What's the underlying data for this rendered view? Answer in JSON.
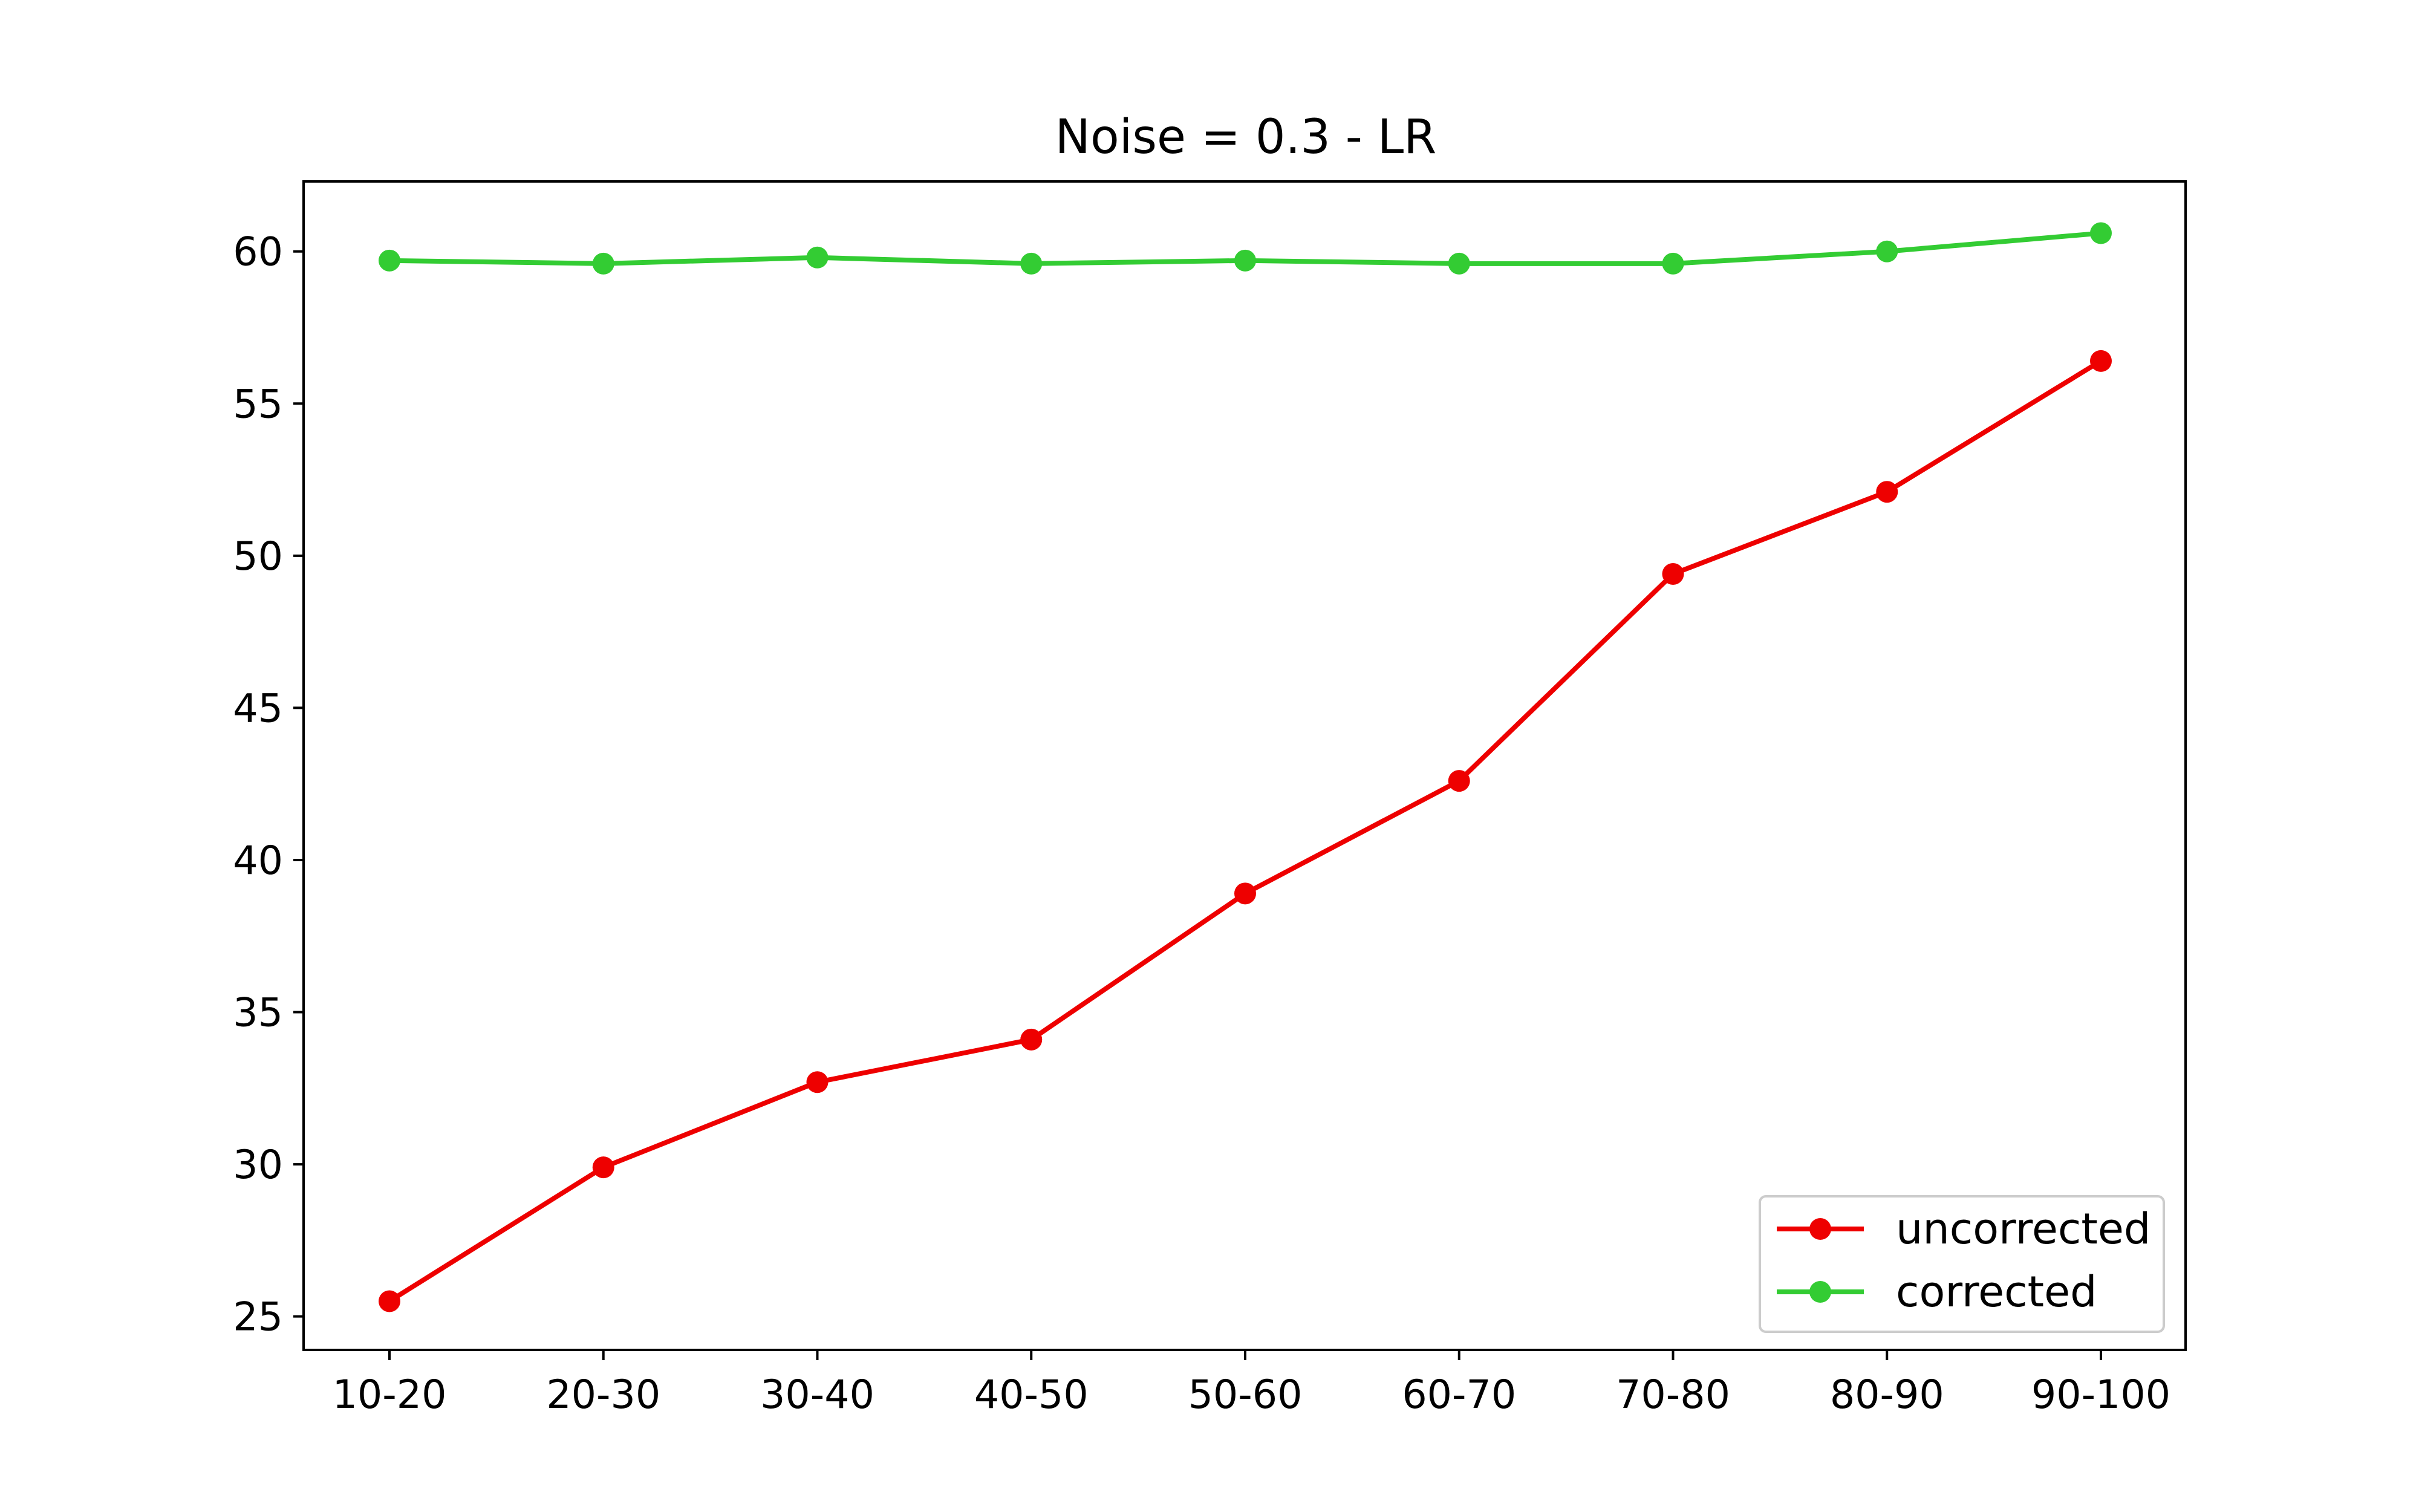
{
  "chart_data": {
    "type": "line",
    "title": "Noise = 0.3 - LR",
    "xlabel": "",
    "ylabel": "",
    "categories": [
      "10-20",
      "20-30",
      "30-40",
      "40-50",
      "50-60",
      "60-70",
      "70-80",
      "80-90",
      "90-100"
    ],
    "series": [
      {
        "name": "uncorrected",
        "color": "#ee0000",
        "marker": "circle",
        "values": [
          25.5,
          29.9,
          32.7,
          34.1,
          38.9,
          42.6,
          49.4,
          52.1,
          56.4
        ]
      },
      {
        "name": "corrected",
        "color": "#33cc33",
        "marker": "circle",
        "values": [
          59.7,
          59.6,
          59.8,
          59.6,
          59.7,
          59.6,
          59.6,
          60.0,
          60.6
        ]
      }
    ],
    "ylim": [
      23.9,
      62.3
    ],
    "yticks": [
      25,
      30,
      35,
      40,
      45,
      50,
      55,
      60
    ],
    "grid": false,
    "legend_position": "lower-right"
  }
}
